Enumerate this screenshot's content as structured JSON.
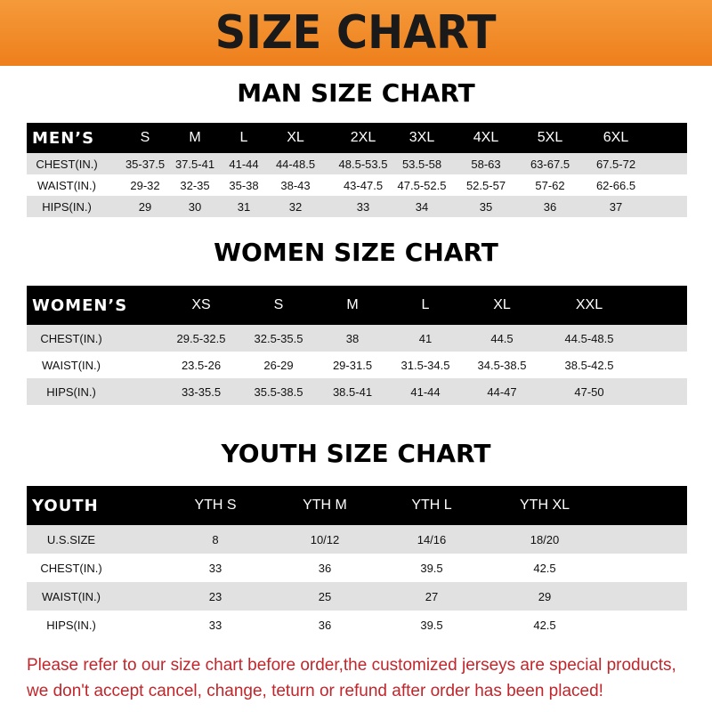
{
  "banner": "SIZE CHART",
  "men": {
    "title": "MAN SIZE CHART",
    "headers": [
      "MEN’S",
      "S",
      "M",
      "L",
      "XL",
      "2XL",
      "3XL",
      "4XL",
      "5XL",
      "6XL"
    ],
    "rows": [
      [
        "CHEST(IN.)",
        "35-37.5",
        "37.5-41",
        "41-44",
        "44-48.5",
        "48.5-53.5",
        "53.5-58",
        "58-63",
        "63-67.5",
        "67.5-72"
      ],
      [
        "WAIST(IN.)",
        "29-32",
        "32-35",
        "35-38",
        "38-43",
        "43-47.5",
        "47.5-52.5",
        "52.5-57",
        "57-62",
        "62-66.5"
      ],
      [
        "HIPS(IN.)",
        "29",
        "30",
        "31",
        "32",
        "33",
        "34",
        "35",
        "36",
        "37"
      ]
    ]
  },
  "women": {
    "title": "WOMEN SIZE CHART",
    "headers": [
      "WOMEN’S",
      "XS",
      "S",
      "M",
      "L",
      "XL",
      "XXL"
    ],
    "rows": [
      [
        "CHEST(IN.)",
        "29.5-32.5",
        "32.5-35.5",
        "38",
        "41",
        "44.5",
        "44.5-48.5"
      ],
      [
        "WAIST(IN.)",
        "23.5-26",
        "26-29",
        "29-31.5",
        "31.5-34.5",
        "34.5-38.5",
        "38.5-42.5"
      ],
      [
        "HIPS(IN.)",
        "33-35.5",
        "35.5-38.5",
        "38.5-41",
        "41-44",
        "44-47",
        "47-50"
      ]
    ]
  },
  "youth": {
    "title": "YOUTH SIZE CHART",
    "headers": [
      "YOUTH",
      "YTH S",
      "YTH M",
      "YTH L",
      "YTH XL"
    ],
    "rows": [
      [
        "U.S.SIZE",
        "8",
        "10/12",
        "14/16",
        "18/20"
      ],
      [
        "CHEST(IN.)",
        "33",
        "36",
        "39.5",
        "42.5"
      ],
      [
        "WAIST(IN.)",
        "23",
        "25",
        "27",
        "29"
      ],
      [
        "HIPS(IN.)",
        "33",
        "36",
        "39.5",
        "42.5"
      ]
    ]
  },
  "note": {
    "line1": "Please refer to our size chart before order,the customized jerseys are special products,",
    "line2": "we don't accept cancel, change, teturn or refund after order has been placed!"
  },
  "colors": {
    "banner": "#ee7f1c",
    "note": "#c0262b",
    "header_row": "#000000",
    "stripe": "#e1e1e1"
  }
}
